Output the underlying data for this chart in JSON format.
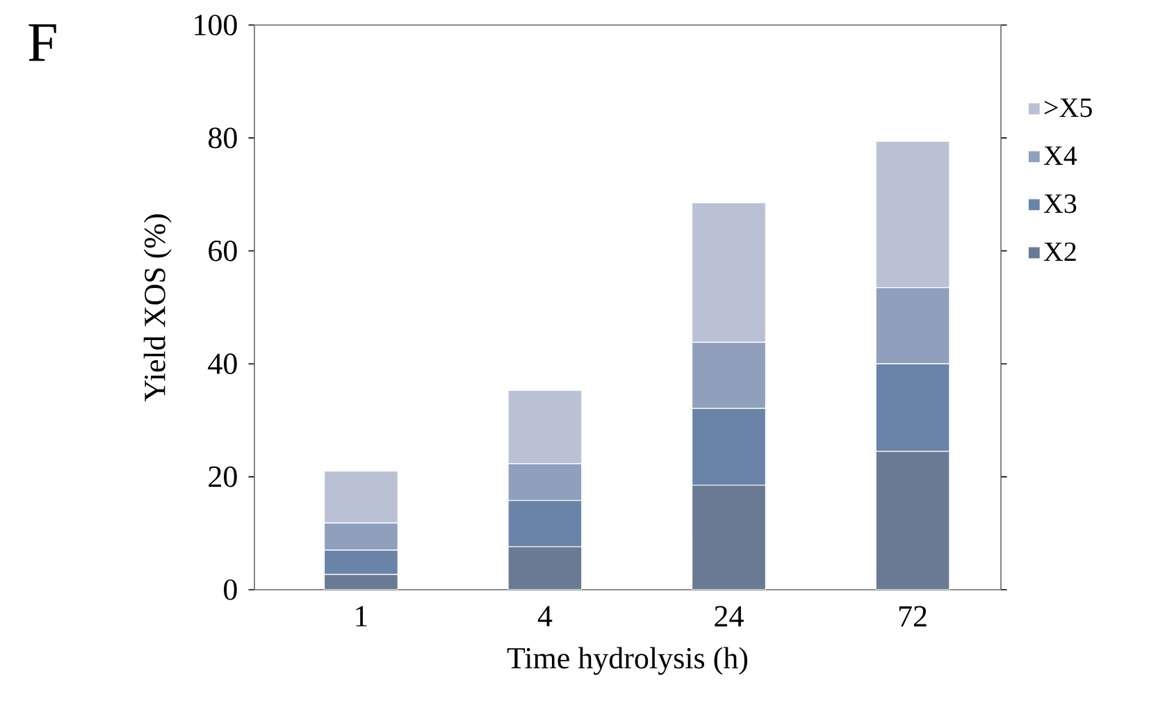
{
  "chart_data": {
    "type": "bar",
    "stacked": true,
    "xlabel": "Time hydrolysis (h)",
    "ylabel": "Yield XOS (%)",
    "annotations": [
      "F"
    ],
    "categories": [
      "1",
      "4",
      "24",
      "72"
    ],
    "series": [
      {
        "name": "X2",
        "color": "#6a7a94",
        "values": [
          2.7,
          7.6,
          18.5,
          24.5
        ]
      },
      {
        "name": "X3",
        "color": "#6a84a8",
        "values": [
          4.3,
          8.2,
          13.6,
          15.5
        ]
      },
      {
        "name": "X4",
        "color": "#909fbb",
        "values": [
          4.8,
          6.5,
          11.7,
          13.5
        ]
      },
      {
        "name": ">X5",
        "color": "#bbc1d5",
        "values": [
          9.2,
          13.0,
          24.7,
          25.9
        ]
      }
    ],
    "ylim": [
      0,
      100
    ],
    "yticks": [
      0,
      20,
      40,
      60,
      80,
      100
    ],
    "legend": "right"
  }
}
